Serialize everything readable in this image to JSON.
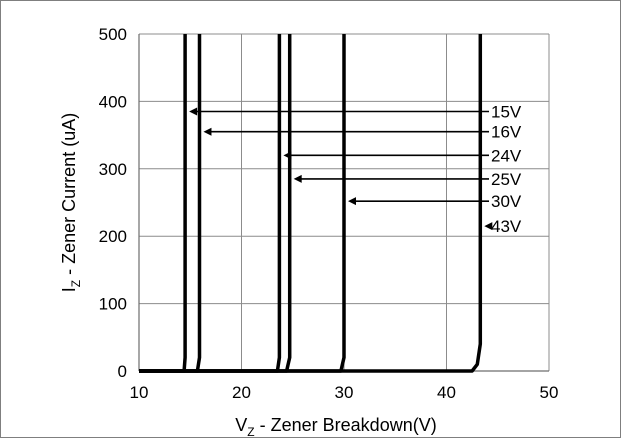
{
  "chart_data": {
    "type": "line",
    "xlabel": {
      "main": "V",
      "sub": "Z",
      "rest": " - Zener Breakdown(V)"
    },
    "ylabel": {
      "main": "I",
      "sub": "Z",
      "rest": " - Zener Current (uA)"
    },
    "xlim": [
      10,
      50
    ],
    "ylim": [
      0,
      500
    ],
    "xticks": [
      10,
      20,
      30,
      40,
      50
    ],
    "yticks": [
      0,
      100,
      200,
      300,
      400,
      500
    ],
    "xtick_labels": [
      "10",
      "20",
      "30",
      "40",
      "50"
    ],
    "ytick_labels": [
      "0",
      "100",
      "200",
      "300",
      "400",
      "500"
    ],
    "grid": true,
    "series": [
      {
        "name": "15V",
        "x": [
          10,
          14.4,
          14.5,
          14.5
        ],
        "y": [
          0,
          0,
          20,
          500
        ],
        "annotation_y": 385
      },
      {
        "name": "16V",
        "x": [
          10,
          15.7,
          15.9,
          15.9
        ],
        "y": [
          0,
          0,
          20,
          500
        ],
        "annotation_y": 355
      },
      {
        "name": "24V",
        "x": [
          10,
          23.5,
          23.7,
          23.7
        ],
        "y": [
          0,
          0,
          20,
          500
        ],
        "annotation_y": 320
      },
      {
        "name": "25V",
        "x": [
          10,
          24.4,
          24.7,
          24.7
        ],
        "y": [
          0,
          0,
          20,
          500
        ],
        "annotation_y": 285
      },
      {
        "name": "30V",
        "x": [
          10,
          29.7,
          30.0,
          30.0
        ],
        "y": [
          0,
          0,
          20,
          500
        ],
        "annotation_y": 252
      },
      {
        "name": "43V",
        "x": [
          10,
          42.5,
          43.0,
          43.3,
          43.3
        ],
        "y": [
          0,
          0,
          10,
          40,
          500
        ],
        "annotation_y": 215
      }
    ]
  }
}
